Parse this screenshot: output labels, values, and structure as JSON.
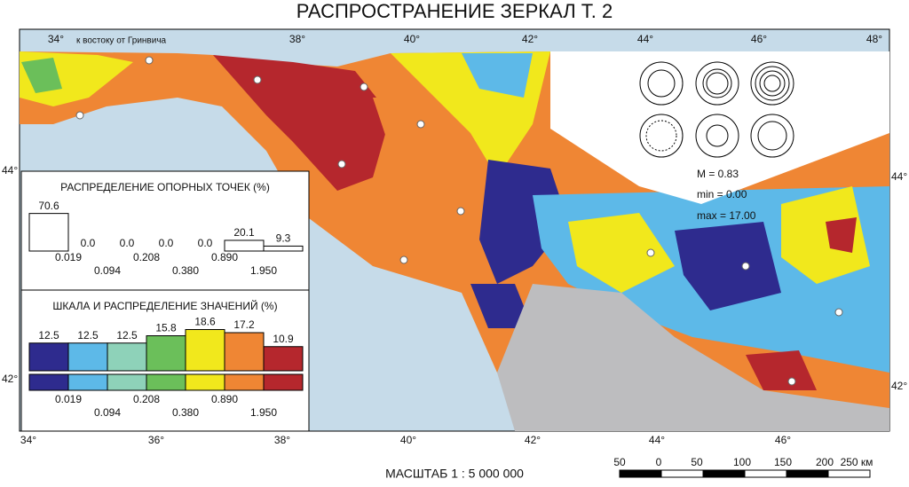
{
  "title": "РАСПРОСТРАНЕНИЕ ЗЕРКАЛ Т. 2",
  "map": {
    "top_longitudes": [
      "34°",
      "38°",
      "40°",
      "42°",
      "44°",
      "46°",
      "48°"
    ],
    "top_note": "к востоку от Гринвича",
    "bottom_longitudes": [
      "34°",
      "36°",
      "38°",
      "40°",
      "42°",
      "44°",
      "46°"
    ],
    "left_latitudes": [
      "44°",
      "42°"
    ],
    "right_latitudes": [
      "44°",
      "42°"
    ],
    "stats": [
      "M = 0.83",
      "min = 0.00",
      "max = 17.00"
    ]
  },
  "reference_points": {
    "title": "РАСПРЕДЕЛЕНИЕ ОПОРНЫХ ТОЧЕК (%)",
    "values": [
      70.6,
      0,
      0,
      0,
      0,
      20.1,
      9.3
    ],
    "value_labels": [
      "70.6",
      "0.0",
      "0.0",
      "0.0",
      "0.0",
      "20.1",
      "9.3"
    ],
    "thresholds": [
      "0.019",
      "0.094",
      "0.208",
      "0.380",
      "0.890",
      "1.950"
    ]
  },
  "value_scale": {
    "title": "ШКАЛА И РАСПРЕДЕЛЕНИЕ ЗНАЧЕНИЙ (%)",
    "values": [
      12.5,
      12.5,
      12.5,
      15.8,
      18.6,
      17.2,
      10.9
    ],
    "colors": [
      "#2e2b8e",
      "#5db9e8",
      "#8ed2b9",
      "#6bbf5a",
      "#f1e81c",
      "#ef8634",
      "#b5272d"
    ],
    "thresholds": [
      "0.019",
      "0.094",
      "0.208",
      "0.380",
      "0.890",
      "1.950"
    ]
  },
  "scale": {
    "label": "МАСШТАБ 1 : 5 000 000",
    "ticks": [
      "50",
      "0",
      "50",
      "100",
      "150",
      "200",
      "250 км"
    ]
  }
}
